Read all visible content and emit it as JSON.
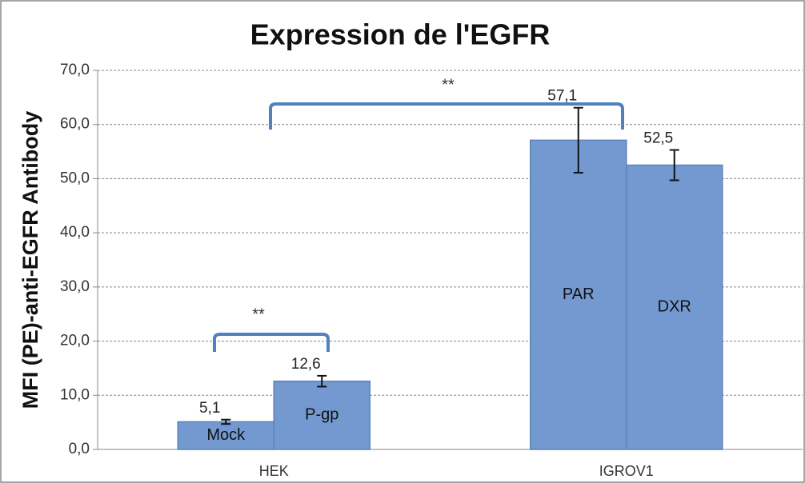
{
  "chart_data": {
    "type": "bar",
    "title": "Expression de l'EGFR",
    "y_label": "MFI (PE)-anti-EGFR Antibody",
    "categories": [
      "HEK",
      "IGROV1"
    ],
    "series": [
      {
        "color": "#7399d0",
        "labels": [
          "Mock",
          "PAR"
        ],
        "values": [
          5.1,
          57.1
        ],
        "value_labels": [
          "5,1",
          "57,1"
        ],
        "errors": [
          0.4,
          6.0
        ]
      },
      {
        "color": "#7399d0",
        "labels": [
          "P-gp",
          "DXR"
        ],
        "values": [
          12.6,
          52.5
        ],
        "value_labels": [
          "12,6",
          "52,5"
        ],
        "errors": [
          1.0,
          2.8
        ]
      }
    ],
    "annotations": [
      "**",
      "**"
    ],
    "ylim": [
      0,
      70
    ],
    "yticks": [
      {
        "value": 0,
        "label": "0,0"
      },
      {
        "value": 10,
        "label": "10,0"
      },
      {
        "value": 20,
        "label": "20,0"
      },
      {
        "value": 30,
        "label": "30,0"
      },
      {
        "value": 40,
        "label": "40,0"
      },
      {
        "value": 50,
        "label": "50,0"
      },
      {
        "value": 60,
        "label": "60,0"
      },
      {
        "value": 70,
        "label": "70,0"
      }
    ],
    "grid": true
  }
}
